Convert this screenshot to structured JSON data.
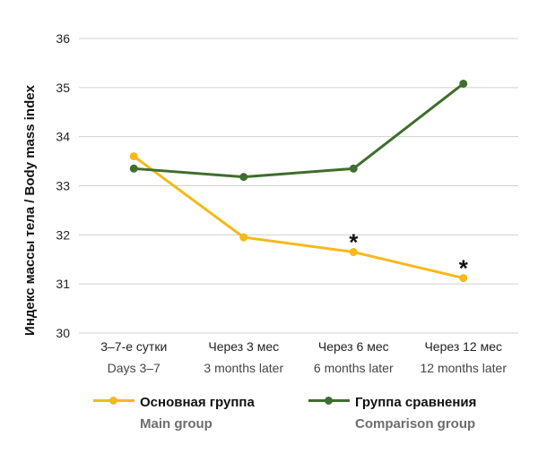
{
  "chart_data": {
    "type": "line",
    "categories": [
      [
        "3–7-е сутки",
        "Days 3–7"
      ],
      [
        "Через 3 мес",
        "3 months later"
      ],
      [
        "Через 6 мес",
        "6 months later"
      ],
      [
        "Через 12 мес",
        "12 months later"
      ]
    ],
    "series": [
      {
        "name_ru": "Основная группа",
        "name_en": "Main group",
        "color": "#f5b919",
        "values": [
          33.6,
          31.95,
          31.65,
          31.12
        ]
      },
      {
        "name_ru": "Группа сравнения",
        "name_en": "Comparison group",
        "color": "#3f6e2d",
        "values": [
          33.35,
          33.18,
          33.35,
          35.08
        ]
      }
    ],
    "annotations": [
      {
        "text": "*",
        "category_index": 2,
        "series_index": 0
      },
      {
        "text": "*",
        "category_index": 3,
        "series_index": 0
      }
    ],
    "ylabel": "Индекс массы тела / Body mass index",
    "yticks": [
      30,
      31,
      32,
      33,
      34,
      35,
      36
    ],
    "ylim": [
      30,
      36
    ],
    "grid": true,
    "legend_position": "bottom"
  }
}
